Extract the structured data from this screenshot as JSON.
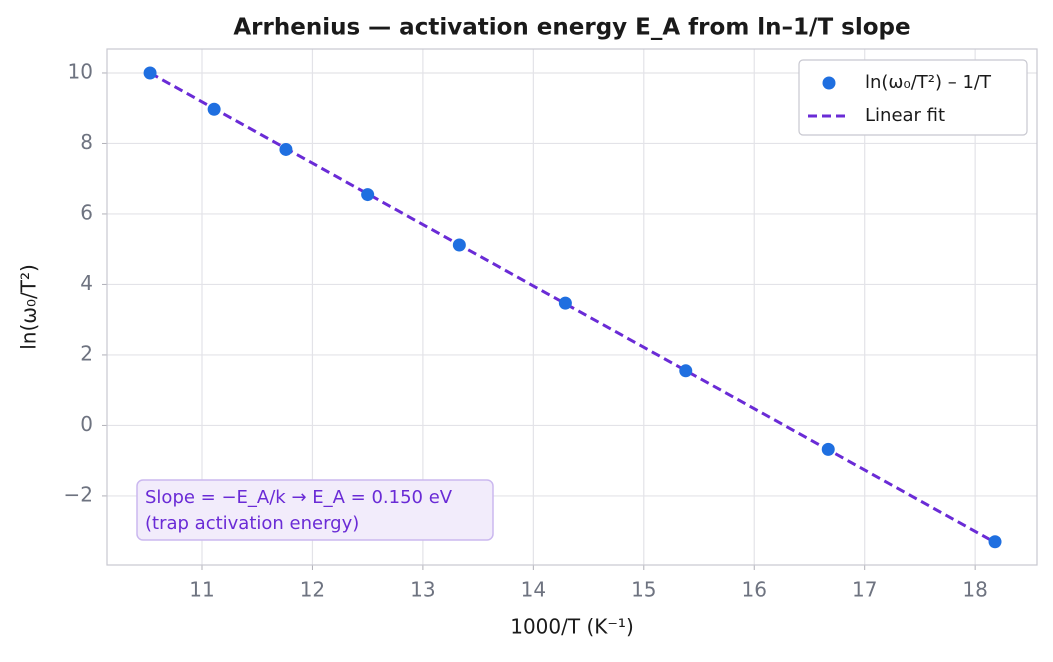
{
  "chart_data": {
    "type": "scatter",
    "title": "Arrhenius — activation energy E_A from ln–1/T slope",
    "x_label": "1000/T  (K⁻¹)",
    "y_label": "ln(ω₀/T²)",
    "xlim": [
      10.14,
      18.56
    ],
    "ylim": [
      -3.96,
      10.68
    ],
    "xticks": [
      11,
      12,
      13,
      14,
      15,
      16,
      17,
      18
    ],
    "yticks": [
      {
        "value": -2,
        "label": "−2"
      },
      0,
      2,
      4,
      6,
      8,
      10
    ],
    "grid": true,
    "legend": "upper right",
    "series": [
      {
        "name": "ln(ω₀/T²) – 1/T",
        "color": "#1f6fe0",
        "style": "markers",
        "x": [
          10.53,
          11.11,
          11.76,
          12.5,
          13.33,
          14.29,
          15.38,
          16.67,
          18.18
        ],
        "values": [
          10.0,
          8.97,
          7.83,
          6.55,
          5.12,
          3.47,
          1.55,
          -0.68,
          -3.3
        ]
      },
      {
        "name": "Linear fit",
        "color": "#6a2bd6",
        "style": "dashed",
        "x": [
          10.53,
          18.18
        ],
        "values": [
          10.0,
          -3.32
        ]
      }
    ],
    "annotation": [
      "Slope = −E_A/k  →  E_A = 0.150 eV",
      "(trap activation energy)"
    ]
  }
}
